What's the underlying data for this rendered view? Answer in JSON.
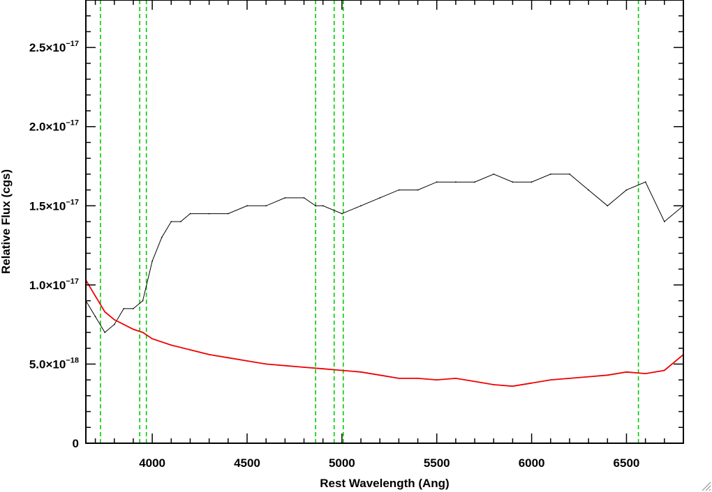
{
  "chart_data": {
    "type": "line",
    "xlabel": "Rest Wavelength (Ang)",
    "ylabel": "Relative Flux (cgs)",
    "xlim": [
      3650,
      6800
    ],
    "ylim": [
      0,
      2.8e-17
    ],
    "x_ticks": [
      {
        "value": 4000,
        "label": "4000"
      },
      {
        "value": 4500,
        "label": "4500"
      },
      {
        "value": 5000,
        "label": "5000"
      },
      {
        "value": 5500,
        "label": "5500"
      },
      {
        "value": 6000,
        "label": "6000"
      },
      {
        "value": 6500,
        "label": "6500"
      }
    ],
    "y_ticks": [
      {
        "value": 0,
        "mantissa": "0",
        "exponent": ""
      },
      {
        "value": 5e-18,
        "mantissa": "5.0×10",
        "exponent": "−18"
      },
      {
        "value": 1e-17,
        "mantissa": "1.0×10",
        "exponent": "−17"
      },
      {
        "value": 1.5e-17,
        "mantissa": "1.5×10",
        "exponent": "−17"
      },
      {
        "value": 2e-17,
        "mantissa": "2.0×10",
        "exponent": "−17"
      },
      {
        "value": 2.5e-17,
        "mantissa": "2.5×10",
        "exponent": "−17"
      }
    ],
    "grid": false,
    "legend": "none",
    "reference_lines": {
      "color": "#00cc00",
      "style": "dashed",
      "x": [
        3727,
        3934,
        3969,
        4861,
        4959,
        5007,
        6563
      ]
    },
    "series": [
      {
        "color": "#000000",
        "x": [
          3650,
          3700,
          3750,
          3800,
          3850,
          3900,
          3950,
          4000,
          4050,
          4100,
          4150,
          4200,
          4300,
          4400,
          4500,
          4600,
          4700,
          4800,
          4861,
          4900,
          5000,
          5100,
          5200,
          5300,
          5400,
          5500,
          5600,
          5700,
          5800,
          5900,
          6000,
          6100,
          6200,
          6300,
          6400,
          6500,
          6600,
          6700,
          6800
        ],
        "y": [
          9e-18,
          8e-18,
          7e-18,
          7.5e-18,
          8.5e-18,
          8.5e-18,
          9e-18,
          1.15e-17,
          1.3e-17,
          1.4e-17,
          1.4e-17,
          1.45e-17,
          1.45e-17,
          1.45e-17,
          1.5e-17,
          1.5e-17,
          1.55e-17,
          1.55e-17,
          1.5e-17,
          1.5e-17,
          1.45e-17,
          1.5e-17,
          1.55e-17,
          1.6e-17,
          1.6e-17,
          1.65e-17,
          1.65e-17,
          1.65e-17,
          1.7e-17,
          1.65e-17,
          1.65e-17,
          1.7e-17,
          1.7e-17,
          1.6e-17,
          1.5e-17,
          1.6e-17,
          1.65e-17,
          1.4e-17,
          1.5e-17
        ]
      },
      {
        "color": "#ee0000",
        "x": [
          3650,
          3700,
          3750,
          3800,
          3850,
          3900,
          3950,
          4000,
          4100,
          4200,
          4300,
          4400,
          4500,
          4600,
          4700,
          4800,
          4900,
          5000,
          5100,
          5200,
          5300,
          5400,
          5500,
          5600,
          5700,
          5800,
          5900,
          6000,
          6100,
          6200,
          6300,
          6400,
          6500,
          6600,
          6700,
          6800
        ],
        "y": [
          1.03e-17,
          9.3e-18,
          8.3e-18,
          7.8e-18,
          7.5e-18,
          7.2e-18,
          7e-18,
          6.6e-18,
          6.2e-18,
          5.9e-18,
          5.6e-18,
          5.4e-18,
          5.2e-18,
          5e-18,
          4.9e-18,
          4.8e-18,
          4.7e-18,
          4.6e-18,
          4.5e-18,
          4.3e-18,
          4.1e-18,
          4.1e-18,
          4e-18,
          4.1e-18,
          3.9e-18,
          3.7e-18,
          3.6e-18,
          3.8e-18,
          4e-18,
          4.1e-18,
          4.2e-18,
          4.3e-18,
          4.5e-18,
          4.4e-18,
          4.6e-18,
          5.6e-18
        ]
      }
    ]
  }
}
